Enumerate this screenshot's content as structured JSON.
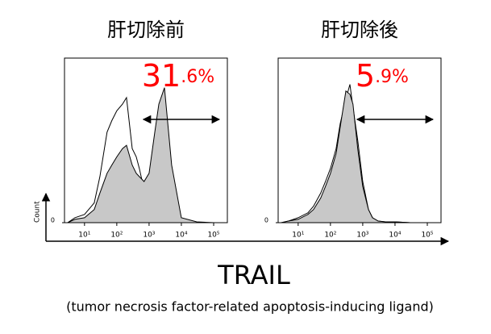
{
  "chart_data": [
    {
      "type": "area",
      "title": "肝切除前",
      "ylabel": "Count",
      "annotation": {
        "value": 31.6,
        "value_label": "31.6%",
        "color": "#ff0000"
      },
      "gate": [
        668,
        150000
      ],
      "x": [
        3,
        5,
        10,
        20,
        30,
        50,
        70,
        100,
        150,
        200,
        300,
        400,
        500,
        700,
        1000,
        1500,
        2000,
        3000,
        5000,
        10000,
        30000,
        100000,
        250000
      ],
      "series": [
        {
          "color": "#ffffff",
          "values": [
            0,
            3,
            5,
            12,
            28,
            55,
            62,
            68,
            72,
            76,
            45,
            40,
            33,
            20,
            15,
            8,
            5,
            2,
            1,
            0.5,
            0,
            0,
            0
          ]
        },
        {
          "color": "#c8c8c8",
          "values": [
            0,
            2,
            3,
            8,
            18,
            30,
            35,
            40,
            45,
            47,
            35,
            30,
            28,
            25,
            30,
            55,
            72,
            82,
            35,
            3,
            0.5,
            0,
            0
          ]
        }
      ],
      "xscale": "log",
      "xlim": [
        2.4,
        266000
      ],
      "xticks": [
        {
          "value": 10,
          "label": "10¹"
        },
        {
          "value": 100,
          "label": "10²"
        },
        {
          "value": 1000,
          "label": "10³"
        },
        {
          "value": 10000,
          "label": "10⁴"
        },
        {
          "value": 100000,
          "label": "10⁵"
        }
      ],
      "ylim": [
        0,
        100
      ],
      "yticks": [
        0
      ]
    },
    {
      "type": "area",
      "title": "肝切除後",
      "annotation": {
        "value": 5.9,
        "value_label": "5.9%",
        "color": "#ff0000"
      },
      "gate": [
        668,
        150000
      ],
      "x": [
        3,
        5,
        10,
        20,
        30,
        50,
        70,
        100,
        150,
        200,
        300,
        400,
        500,
        700,
        1000,
        1500,
        2000,
        3000,
        5000,
        10000,
        30000,
        100000,
        250000
      ],
      "series": [
        {
          "color": "#ffffff",
          "values": [
            0,
            1,
            3,
            6,
            10,
            18,
            25,
            33,
            45,
            60,
            75,
            84,
            70,
            50,
            25,
            8,
            3,
            1,
            0.5,
            0.5,
            0,
            0,
            0
          ]
        },
        {
          "color": "#c8c8c8",
          "values": [
            0,
            1,
            2,
            5,
            8,
            15,
            22,
            30,
            42,
            58,
            80,
            78,
            72,
            45,
            22,
            8,
            3,
            1,
            0.5,
            0.5,
            0,
            0,
            0
          ]
        }
      ],
      "xscale": "log",
      "xlim": [
        2.4,
        266000
      ],
      "xticks": [
        {
          "value": 10,
          "label": "10¹"
        },
        {
          "value": 100,
          "label": "10²"
        },
        {
          "value": 1000,
          "label": "10³"
        },
        {
          "value": 10000,
          "label": "10⁴"
        },
        {
          "value": 100000,
          "label": "10⁵"
        }
      ],
      "ylim": [
        0,
        100
      ],
      "yticks": [
        0
      ]
    }
  ],
  "xlabel": "TRAIL",
  "subtitle": "(tumor necrosis factor-related apoptosis-inducing ligand)"
}
